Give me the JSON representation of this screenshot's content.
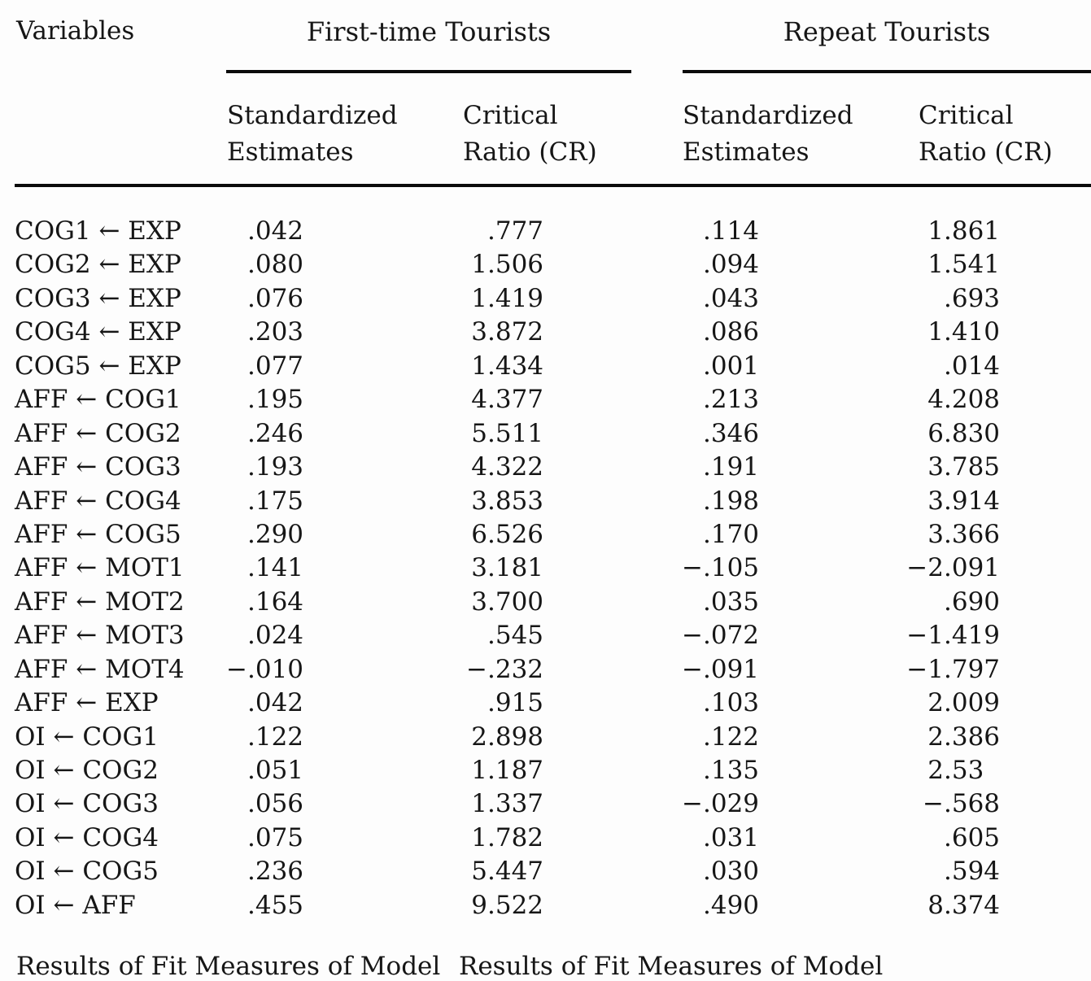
{
  "page": {
    "background_color": "#fdfdfd",
    "text_color": "#161616",
    "rule_color": "#0b0b0b"
  },
  "table": {
    "header": {
      "variables": "Variables",
      "group1": "First-time Tourists",
      "group2": "Repeat Tourists",
      "sub_estimates_line1": "Standardized",
      "sub_estimates_line2": "Estimates",
      "sub_cr_line1": "Critical",
      "sub_cr_line2": "Ratio (CR)"
    },
    "rows": [
      {
        "variable": "COG1 ← EXP",
        "ft_se": ".042",
        "ft_cr": ".777",
        "rt_se": ".114",
        "rt_cr": "1.861"
      },
      {
        "variable": "COG2 ← EXP",
        "ft_se": ".080",
        "ft_cr": "1.506",
        "rt_se": ".094",
        "rt_cr": "1.541"
      },
      {
        "variable": "COG3 ← EXP",
        "ft_se": ".076",
        "ft_cr": "1.419",
        "rt_se": ".043",
        "rt_cr": ".693"
      },
      {
        "variable": "COG4 ← EXP",
        "ft_se": ".203",
        "ft_cr": "3.872",
        "rt_se": ".086",
        "rt_cr": "1.410"
      },
      {
        "variable": "COG5 ← EXP",
        "ft_se": ".077",
        "ft_cr": "1.434",
        "rt_se": ".001",
        "rt_cr": ".014"
      },
      {
        "variable": "AFF ← COG1",
        "ft_se": ".195",
        "ft_cr": "4.377",
        "rt_se": ".213",
        "rt_cr": "4.208"
      },
      {
        "variable": "AFF ← COG2",
        "ft_se": ".246",
        "ft_cr": "5.511",
        "rt_se": ".346",
        "rt_cr": "6.830"
      },
      {
        "variable": "AFF ← COG3",
        "ft_se": ".193",
        "ft_cr": "4.322",
        "rt_se": ".191",
        "rt_cr": "3.785"
      },
      {
        "variable": "AFF ← COG4",
        "ft_se": ".175",
        "ft_cr": "3.853",
        "rt_se": ".198",
        "rt_cr": "3.914"
      },
      {
        "variable": "AFF ← COG5",
        "ft_se": ".290",
        "ft_cr": "6.526",
        "rt_se": ".170",
        "rt_cr": "3.366"
      },
      {
        "variable": "AFF ← MOT1",
        "ft_se": ".141",
        "ft_cr": "3.181",
        "rt_se": "−.105",
        "rt_cr": "−2.091"
      },
      {
        "variable": "AFF ← MOT2",
        "ft_se": ".164",
        "ft_cr": "3.700",
        "rt_se": ".035",
        "rt_cr": ".690"
      },
      {
        "variable": "AFF ← MOT3",
        "ft_se": ".024",
        "ft_cr": ".545",
        "rt_se": "−.072",
        "rt_cr": "−1.419"
      },
      {
        "variable": "AFF ← MOT4",
        "ft_se": "−.010",
        "ft_cr": "−.232",
        "rt_se": "−.091",
        "rt_cr": "−1.797"
      },
      {
        "variable": "AFF ← EXP",
        "ft_se": ".042",
        "ft_cr": ".915",
        "rt_se": ".103",
        "rt_cr": "2.009"
      },
      {
        "variable": "OI ← COG1",
        "ft_se": ".122",
        "ft_cr": "2.898",
        "rt_se": ".122",
        "rt_cr": "2.386"
      },
      {
        "variable": "OI ← COG2",
        "ft_se": ".051",
        "ft_cr": "1.187",
        "rt_se": ".135",
        "rt_cr": "2.53"
      },
      {
        "variable": "OI ← COG3",
        "ft_se": ".056",
        "ft_cr": "1.337",
        "rt_se": "−.029",
        "rt_cr": "−.568"
      },
      {
        "variable": "OI ← COG4",
        "ft_se": ".075",
        "ft_cr": "1.782",
        "rt_se": ".031",
        "rt_cr": ".605"
      },
      {
        "variable": "OI ← COG5",
        "ft_se": ".236",
        "ft_cr": "5.447",
        "rt_se": ".030",
        "rt_cr": ".594"
      },
      {
        "variable": "OI ← AFF",
        "ft_se": ".455",
        "ft_cr": "9.522",
        "rt_se": ".490",
        "rt_cr": "8.374"
      }
    ]
  },
  "footer": {
    "heading1": "Results of Fit Measures of Model",
    "heading2": "Results of Fit Measures of Model"
  }
}
